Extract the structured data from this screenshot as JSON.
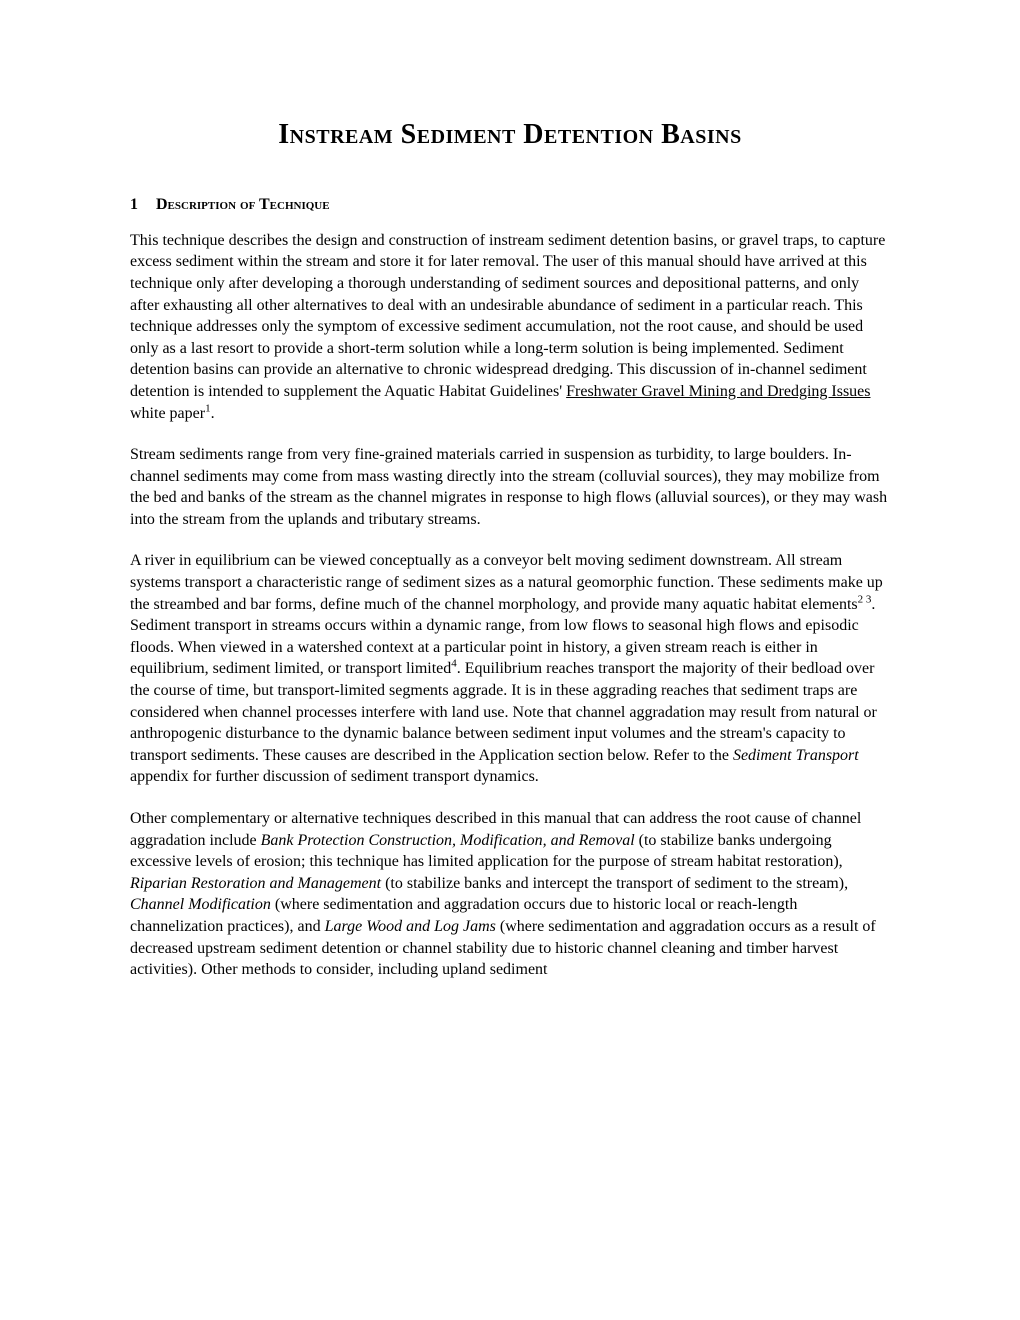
{
  "title": "Instream Sediment Detention Basins",
  "section": {
    "number": "1",
    "heading": "Description of Technique"
  },
  "paragraphs": {
    "p1_part1": "This technique describes the design and construction of instream sediment detention basins, or gravel traps, to capture excess sediment within the stream and store it for later removal.  The user of this manual should have arrived at this technique only after developing a thorough understanding of sediment sources and depositional patterns, and only after exhausting all other alternatives to deal with an undesirable abundance of sediment in a particular reach.  This technique addresses only the symptom of excessive sediment accumulation, not the root cause, and should be used only as a last resort to provide a short-term solution while a long-term solution is being implemented.  Sediment detention basins can provide an alternative to chronic widespread dredging.  This discussion of in-channel sediment detention is intended to supplement the Aquatic Habitat Guidelines' ",
    "p1_underlined": "Freshwater Gravel Mining and Dredging Issues",
    "p1_part2": " white paper",
    "p1_sup": "1",
    "p1_part3": ".",
    "p2": "Stream sediments range from very fine-grained materials carried in suspension as turbidity, to large boulders.  In-channel sediments may come from mass wasting directly into the stream (colluvial sources), they may mobilize from the bed and banks of the stream as the channel migrates in response to high flows (alluvial sources), or they may wash into the stream from the uplands and tributary streams.",
    "p3_part1": "A river in equilibrium can be viewed conceptually as a conveyor belt moving sediment downstream.  All stream systems transport a characteristic range of sediment sizes as a natural geomorphic function.  These sediments make up the streambed and bar forms, define much of the channel morphology, and provide many aquatic habitat elements",
    "p3_sup1": "2 3",
    "p3_part2": ".  Sediment transport in streams occurs within a dynamic range, from low flows to seasonal high flows and episodic floods.  When viewed in a watershed context at a particular point in history, a given stream reach is either in equilibrium, sediment limited, or transport limited",
    "p3_sup2": "4",
    "p3_part3": ".  Equilibrium reaches transport the majority of their bedload over the course of time, but transport-limited segments aggrade.  It is in these aggrading reaches that sediment traps are considered when channel processes interfere with land use.  Note that channel aggradation may result from natural or anthropogenic disturbance to the dynamic balance between sediment input volumes and the stream's capacity to transport sediments.  These causes are described in the Application section below.  Refer to the ",
    "p3_italic": "Sediment Transport",
    "p3_part4": " appendix for further discussion of sediment transport dynamics.",
    "p4_part1": "Other complementary or alternative techniques described in this manual that can address the root cause of channel aggradation include ",
    "p4_italic1": "Bank Protection Construction, Modification, and Removal",
    "p4_part2": " (to stabilize banks undergoing excessive levels of erosion; this technique has limited application for the purpose of stream habitat restoration), ",
    "p4_italic2": "Riparian Restoration and Management",
    "p4_part3": " (to stabilize banks and intercept the transport of sediment to the stream), ",
    "p4_italic3": "Channel Modification",
    "p4_part4": " (where sedimentation and aggradation occurs due to historic local or reach-length channelization practices), and ",
    "p4_italic4": "Large Wood and Log Jams",
    "p4_part5": " (where sedimentation and aggradation occurs as a result of decreased upstream sediment detention or channel stability due to historic channel cleaning and timber harvest activities).  Other methods to consider, including upland sediment"
  }
}
